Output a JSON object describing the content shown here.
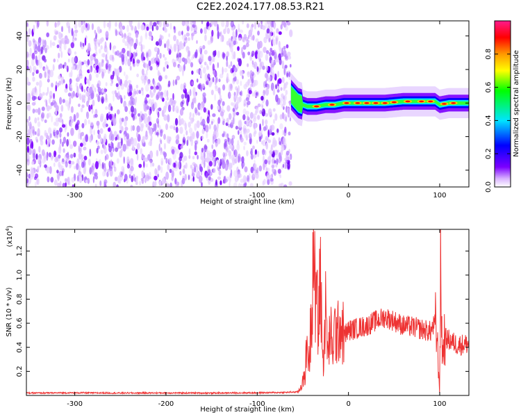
{
  "title": "C2E2.2024.177.08.53.R21",
  "chart_data": [
    {
      "type": "heatmap",
      "xlabel": "Height of straight line (km)",
      "ylabel": "Frequency (Hz)",
      "xlim": [
        -353,
        132
      ],
      "ylim": [
        -50,
        49
      ],
      "xticks": [
        -300,
        -200,
        -100,
        0,
        100
      ],
      "yticks": [
        -40,
        -20,
        0,
        20,
        40
      ],
      "noise_region_x": [
        -353,
        -63
      ],
      "signal_track": {
        "x": [
          -63,
          -55,
          -45,
          -35,
          -25,
          -15,
          -5,
          5,
          20,
          40,
          60,
          75,
          85,
          95,
          100,
          110,
          120,
          132
        ],
        "y": [
          5,
          0,
          -2,
          -2,
          -1,
          -1,
          0,
          0,
          0,
          0,
          1,
          1,
          1,
          1,
          -1,
          0,
          0,
          0
        ]
      },
      "colorbar": {
        "label": "Normalized spectral amplitude",
        "range": [
          0,
          1
        ],
        "ticks": [
          0.0,
          0.2,
          0.4,
          0.6,
          0.8
        ],
        "colormap": [
          "#ffffff",
          "#7b00ff",
          "#0000ff",
          "#00e5ff",
          "#00ff00",
          "#ffff00",
          "#ff7f00",
          "#ff0000",
          "#ff1a8c"
        ]
      }
    },
    {
      "type": "line",
      "xlabel": "Height of straight line (km)",
      "ylabel": "SNR (10 * v/v)",
      "y_multiplier": "(x10",
      "y_multiplier_exp": "4",
      "y_multiplier_close": ")",
      "xlim": [
        -353,
        132
      ],
      "ylim": [
        0,
        13800
      ],
      "xticks": [
        -300,
        -200,
        -100,
        0,
        100
      ],
      "yticks": [
        2000,
        4000,
        6000,
        8000,
        10000,
        12000
      ],
      "ytick_labels": [
        "0.2",
        "0.4",
        "0.6",
        "0.8",
        "1.0",
        "1.2"
      ],
      "color": "#ee3333",
      "series": [
        {
          "x": [
            -353,
            -300,
            -250,
            -200,
            -150,
            -100,
            -70,
            -55,
            -48,
            -45,
            -43,
            -40,
            -38,
            -36,
            -35,
            -33,
            -31,
            -28,
            -25,
            -22,
            -20,
            -18,
            -15,
            -12,
            -10,
            -5,
            0,
            10,
            20,
            30,
            40,
            50,
            60,
            70,
            80,
            90,
            95,
            97,
            100,
            101,
            103,
            105,
            110,
            120,
            132
          ],
          "y": [
            200,
            220,
            200,
            210,
            200,
            220,
            250,
            300,
            1500,
            4500,
            2500,
            9000,
            13500,
            5000,
            12000,
            4000,
            11000,
            2500,
            7000,
            3000,
            6000,
            3500,
            5500,
            4800,
            6000,
            5000,
            5400,
            5600,
            5800,
            6200,
            6500,
            6200,
            5800,
            5700,
            5500,
            5300,
            6000,
            5000,
            200,
            10500,
            3000,
            4800,
            4600,
            4200,
            4300
          ]
        }
      ]
    }
  ]
}
